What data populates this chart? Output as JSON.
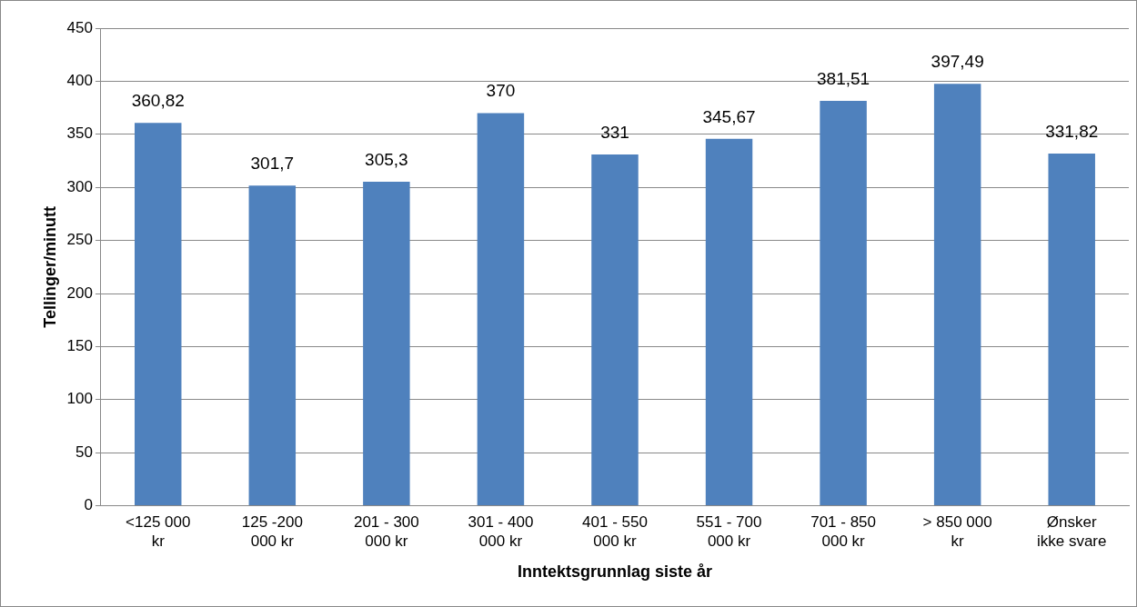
{
  "chart_data": {
    "type": "bar",
    "xlabel": "Inntektsgrunnlag siste år",
    "ylabel": "Tellinger/minutt",
    "categories": [
      "<125 000 kr",
      "125 -200 000 kr",
      "201 - 300 000 kr",
      "301 - 400 000 kr",
      "401 - 550 000 kr",
      "551 - 700 000 kr",
      "701 - 850 000 kr",
      "> 850 000 kr",
      "Ønsker ikke svare"
    ],
    "values": [
      360.82,
      301.7,
      305.3,
      370,
      331,
      345.67,
      381.51,
      397.49,
      331.82
    ],
    "value_labels": [
      "360,82",
      "301,7",
      "305,3",
      "370",
      "331",
      "345,67",
      "381,51",
      "397,49",
      "331,82"
    ],
    "color": "#4f81bd",
    "ylim": [
      0,
      450
    ],
    "yticks": [
      0,
      50,
      100,
      150,
      200,
      250,
      300,
      350,
      400,
      450
    ],
    "grid": "y",
    "legend": false
  }
}
